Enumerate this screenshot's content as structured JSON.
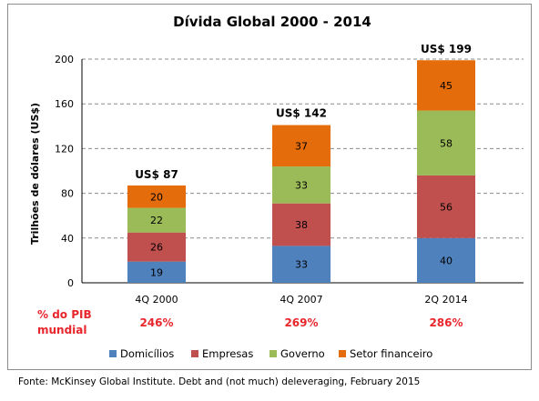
{
  "chart_data": {
    "type": "bar",
    "stacked": true,
    "title": "Dívida Global 2000 - 2014",
    "ylabel": "Trilhões de dólares (US$)",
    "xlabel": "",
    "ylim": [
      0,
      200
    ],
    "yticks": [
      "0",
      "40",
      "80",
      "120",
      "160",
      "200"
    ],
    "ytick_values": [
      0,
      40,
      80,
      120,
      160,
      200
    ],
    "grid": true,
    "legend_position": "bottom",
    "categories": [
      "4Q 2000",
      "4Q 2007",
      "2Q 2014"
    ],
    "series": [
      {
        "name": "Domicílios",
        "color": "#4f81bd",
        "values": [
          19,
          33,
          40
        ]
      },
      {
        "name": "Empresas",
        "color": "#c0504d",
        "values": [
          26,
          38,
          56
        ]
      },
      {
        "name": "Governo",
        "color": "#9bbb59",
        "values": [
          22,
          33,
          58
        ]
      },
      {
        "name": "Setor financeiro",
        "color": "#e46c0a",
        "values": [
          20,
          37,
          45
        ]
      }
    ],
    "totals": [
      "US$ 87",
      "US$ 142",
      "US$ 199"
    ],
    "total_values": [
      87,
      142,
      199
    ],
    "gdp_caption": "% do PIB mundial",
    "gdp_caption_lines": [
      "% do PIB",
      "mundial"
    ],
    "gdp_percent": [
      "246%",
      "269%",
      "286%"
    ],
    "gdp_percent_values": [
      246,
      269,
      286
    ]
  },
  "colors": {
    "gdp_text": "#e8262c",
    "grid": "#8c8c8c"
  },
  "source": "Fonte: McKinsey Global Institute. Debt and (not much) deleveraging, February 2015"
}
